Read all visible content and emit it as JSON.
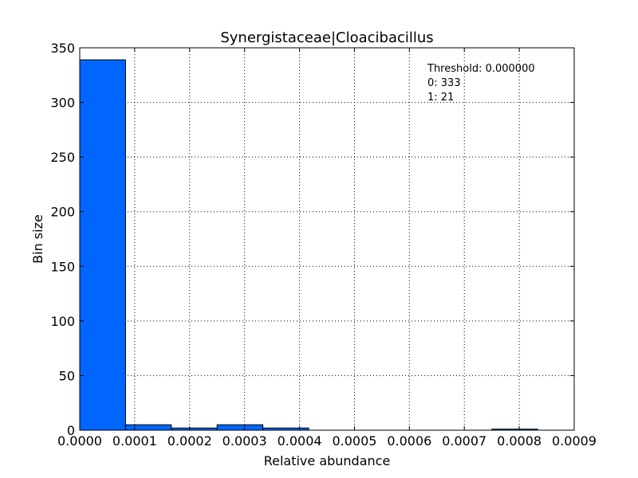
{
  "chart_data": {
    "type": "bar",
    "title": "Synergistaceae|Cloacibacillus",
    "xlabel": "Relative abundance",
    "ylabel": "Bin size",
    "xlim": [
      0,
      0.0009
    ],
    "ylim": [
      0,
      350
    ],
    "grid": true,
    "bar_color": "#0066ff",
    "xticks": [
      "0.0000",
      "0.0001",
      "0.0002",
      "0.0003",
      "0.0004",
      "0.0005",
      "0.0006",
      "0.0007",
      "0.0008",
      "0.0009"
    ],
    "yticks": [
      "0",
      "50",
      "100",
      "150",
      "200",
      "250",
      "300",
      "350"
    ],
    "bins": [
      {
        "start": 0.0,
        "end": 8.33e-05,
        "value": 339
      },
      {
        "start": 8.33e-05,
        "end": 0.0001667,
        "value": 5
      },
      {
        "start": 0.0001667,
        "end": 0.00025,
        "value": 2
      },
      {
        "start": 0.00025,
        "end": 0.0003333,
        "value": 5
      },
      {
        "start": 0.0003333,
        "end": 0.0004167,
        "value": 2
      },
      {
        "start": 0.0004167,
        "end": 0.0005,
        "value": 0
      },
      {
        "start": 0.0005,
        "end": 0.0005833,
        "value": 0
      },
      {
        "start": 0.0005833,
        "end": 0.0006667,
        "value": 0
      },
      {
        "start": 0.0006667,
        "end": 0.00075,
        "value": 0
      },
      {
        "start": 0.00075,
        "end": 0.0008333,
        "value": 1
      }
    ],
    "annotations": [
      "Threshold: 0.000000",
      "0: 333",
      "1: 21"
    ]
  }
}
